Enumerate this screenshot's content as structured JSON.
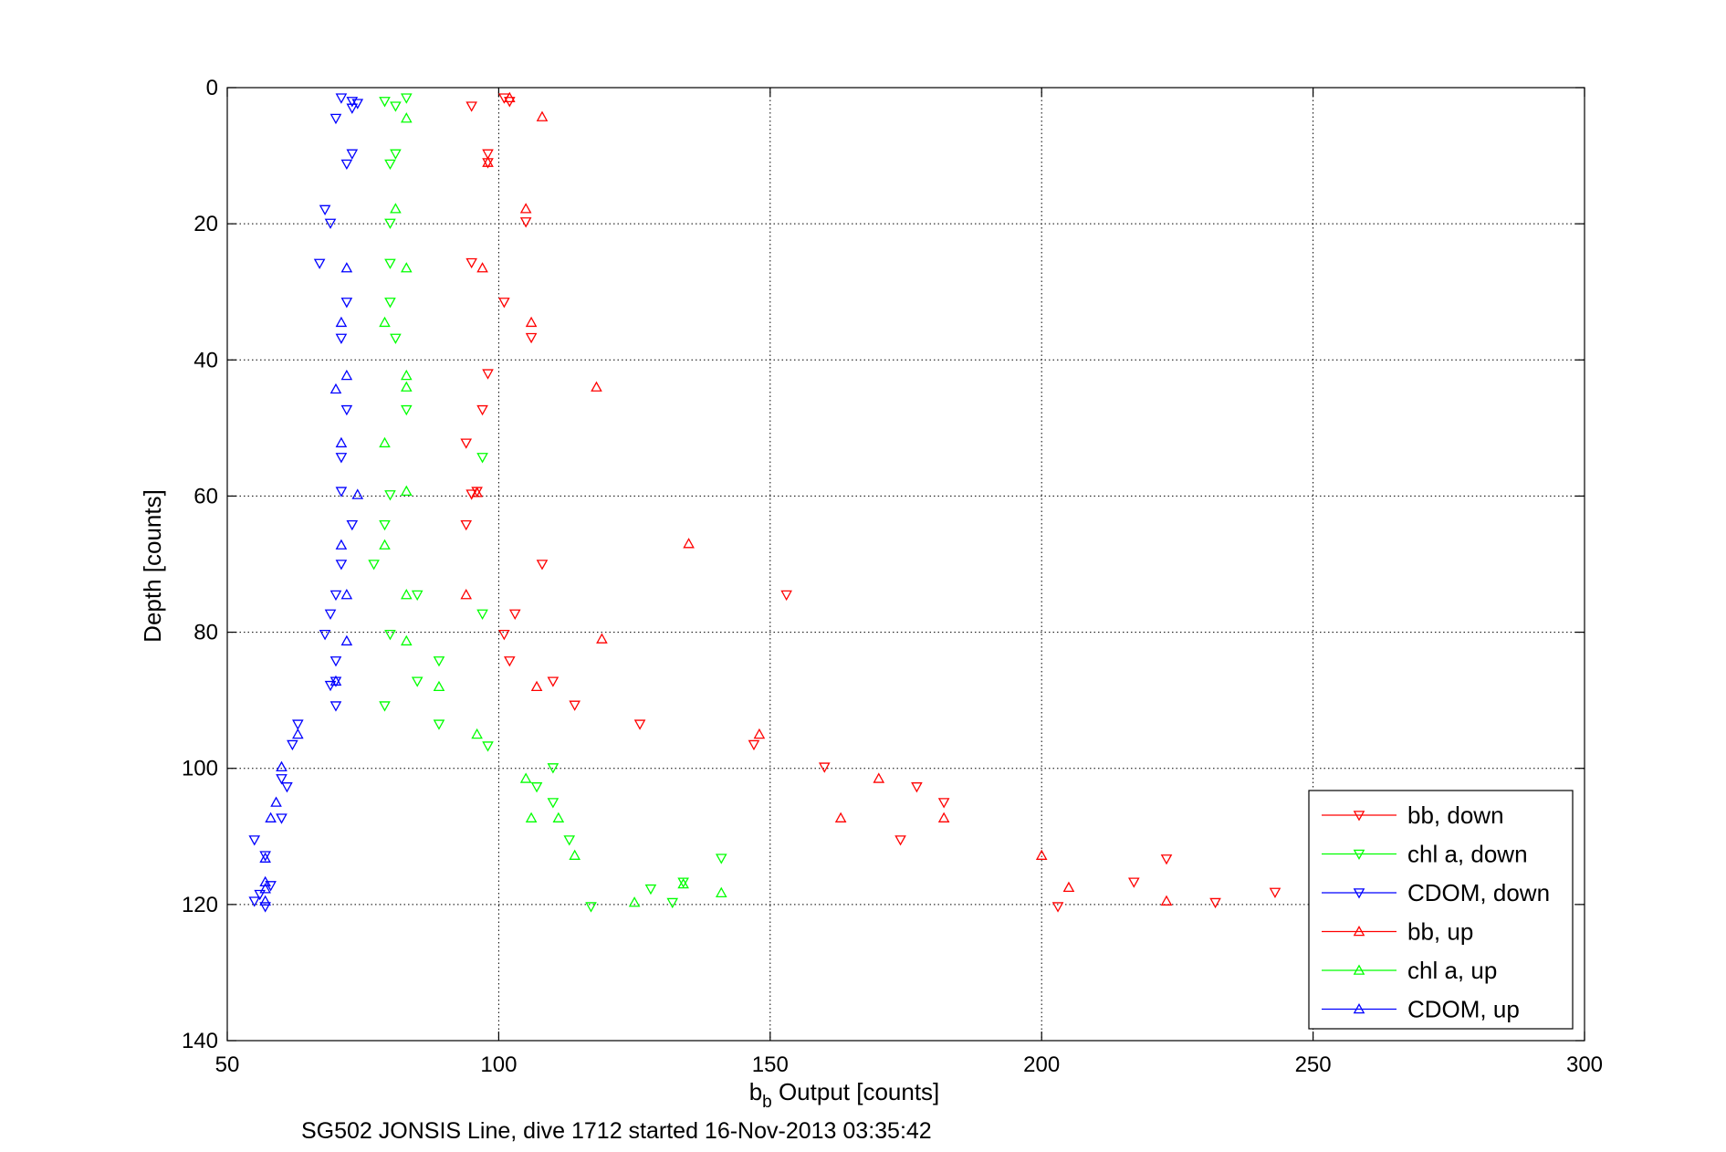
{
  "chart_data": {
    "type": "scatter",
    "title": "",
    "xlabel_main": "b",
    "xlabel_sub": "b",
    "xlabel_rest": " Output [counts]",
    "ylabel": "Depth [counts]",
    "caption": "SG502 JONSIS Line, dive 1712 started 16-Nov-2013 03:35:42",
    "xlim": [
      50,
      300
    ],
    "ylim": [
      0,
      140
    ],
    "y_reversed": true,
    "xticks": [
      50,
      100,
      150,
      200,
      250,
      300
    ],
    "yticks": [
      0,
      20,
      40,
      60,
      80,
      100,
      120,
      140
    ],
    "grid": true,
    "legend_position": "bottom-right",
    "series": [
      {
        "name": "bb, down",
        "color": "#ff0000",
        "marker": "triangle-down",
        "points": [
          [
            101,
            1.5
          ],
          [
            102,
            2
          ],
          [
            95,
            2.7
          ],
          [
            98,
            9.7
          ],
          [
            98,
            11
          ],
          [
            105,
            19.7
          ],
          [
            95,
            25.7
          ],
          [
            101,
            31.5
          ],
          [
            106,
            36.7
          ],
          [
            98,
            42
          ],
          [
            97,
            47.3
          ],
          [
            94,
            52.2
          ],
          [
            96,
            59.3
          ],
          [
            95,
            59.7
          ],
          [
            94,
            64.2
          ],
          [
            108,
            70
          ],
          [
            153,
            74.5
          ],
          [
            103,
            77.3
          ],
          [
            101,
            80.3
          ],
          [
            102,
            84.2
          ],
          [
            110,
            87.2
          ],
          [
            114,
            90.7
          ],
          [
            126,
            93.5
          ],
          [
            147,
            96.5
          ],
          [
            160,
            99.8
          ],
          [
            177,
            102.7
          ],
          [
            182,
            105
          ],
          [
            174,
            110.5
          ],
          [
            223,
            113.3
          ],
          [
            217,
            116.7
          ],
          [
            243,
            118.2
          ],
          [
            232,
            119.7
          ],
          [
            203,
            120.3
          ]
        ]
      },
      {
        "name": "chl a, down",
        "color": "#00ff00",
        "marker": "triangle-down",
        "points": [
          [
            83,
            1.5
          ],
          [
            79,
            2
          ],
          [
            81,
            2.7
          ],
          [
            81,
            9.7
          ],
          [
            80,
            11.2
          ],
          [
            80,
            19.9
          ],
          [
            80,
            25.8
          ],
          [
            80,
            31.5
          ],
          [
            81,
            36.8
          ],
          [
            83,
            47.3
          ],
          [
            97,
            54.3
          ],
          [
            80,
            59.8
          ],
          [
            79,
            64.2
          ],
          [
            77,
            70
          ],
          [
            85,
            74.5
          ],
          [
            97,
            77.3
          ],
          [
            80,
            80.3
          ],
          [
            89,
            84.2
          ],
          [
            85,
            87.2
          ],
          [
            79,
            90.8
          ],
          [
            89,
            93.5
          ],
          [
            98,
            96.7
          ],
          [
            110,
            99.9
          ],
          [
            107,
            102.7
          ],
          [
            110,
            105
          ],
          [
            113,
            110.5
          ],
          [
            141,
            113.2
          ],
          [
            134,
            116.7
          ],
          [
            128,
            117.7
          ],
          [
            132,
            119.7
          ],
          [
            117,
            120.3
          ]
        ]
      },
      {
        "name": "CDOM, down",
        "color": "#0000ff",
        "marker": "triangle-down",
        "points": [
          [
            71,
            1.5
          ],
          [
            73,
            2
          ],
          [
            74,
            2.3
          ],
          [
            73,
            3
          ],
          [
            70,
            4.5
          ],
          [
            73,
            9.7
          ],
          [
            72,
            11.2
          ],
          [
            68,
            17.9
          ],
          [
            69,
            19.9
          ],
          [
            67,
            25.8
          ],
          [
            72,
            31.5
          ],
          [
            71,
            36.8
          ],
          [
            72,
            47.3
          ],
          [
            71,
            54.3
          ],
          [
            71,
            59.3
          ],
          [
            73,
            64.2
          ],
          [
            71,
            70
          ],
          [
            70,
            74.5
          ],
          [
            69,
            77.3
          ],
          [
            68,
            80.3
          ],
          [
            70,
            84.2
          ],
          [
            70,
            87.2
          ],
          [
            69,
            87.8
          ],
          [
            70,
            90.8
          ],
          [
            63,
            93.5
          ],
          [
            62,
            96.5
          ],
          [
            60,
            101.5
          ],
          [
            61,
            102.7
          ],
          [
            60,
            107.3
          ],
          [
            55,
            110.5
          ],
          [
            57,
            112.8
          ],
          [
            58,
            117.2
          ],
          [
            56,
            118.5
          ],
          [
            55,
            119.5
          ],
          [
            57,
            120.3
          ]
        ]
      },
      {
        "name": "bb, up",
        "color": "#ff0000",
        "marker": "triangle-up",
        "points": [
          [
            102,
            1.5
          ],
          [
            108,
            4.3
          ],
          [
            98,
            11
          ],
          [
            105,
            17.8
          ],
          [
            97,
            26.5
          ],
          [
            106,
            34.5
          ],
          [
            118,
            44
          ],
          [
            96,
            59.5
          ],
          [
            135,
            67
          ],
          [
            94,
            74.5
          ],
          [
            119,
            81
          ],
          [
            107,
            88
          ],
          [
            148,
            95
          ],
          [
            170,
            101.5
          ],
          [
            163,
            107.3
          ],
          [
            182,
            107.3
          ],
          [
            200,
            112.8
          ],
          [
            205,
            117.5
          ],
          [
            223,
            119.5
          ]
        ]
      },
      {
        "name": "chl a, up",
        "color": "#00ff00",
        "marker": "triangle-up",
        "points": [
          [
            83,
            4.5
          ],
          [
            81,
            17.8
          ],
          [
            83,
            26.5
          ],
          [
            79,
            34.5
          ],
          [
            83,
            42.3
          ],
          [
            83,
            44
          ],
          [
            79,
            52.2
          ],
          [
            83,
            59.3
          ],
          [
            79,
            67.2
          ],
          [
            83,
            74.5
          ],
          [
            83,
            81.3
          ],
          [
            89,
            88
          ],
          [
            96,
            95
          ],
          [
            105,
            101.5
          ],
          [
            106,
            107.3
          ],
          [
            111,
            107.3
          ],
          [
            114,
            112.8
          ],
          [
            134,
            117
          ],
          [
            141,
            118.3
          ],
          [
            125,
            119.7
          ]
        ]
      },
      {
        "name": "CDOM, up",
        "color": "#0000ff",
        "marker": "triangle-up",
        "points": [
          [
            72,
            26.5
          ],
          [
            71,
            34.5
          ],
          [
            72,
            42.3
          ],
          [
            70,
            44.3
          ],
          [
            71,
            52.2
          ],
          [
            74,
            59.8
          ],
          [
            71,
            67.2
          ],
          [
            72,
            74.5
          ],
          [
            72,
            81.3
          ],
          [
            70,
            87.2
          ],
          [
            63,
            95
          ],
          [
            60,
            99.8
          ],
          [
            59,
            105
          ],
          [
            58,
            107.3
          ],
          [
            57,
            113.2
          ],
          [
            57,
            116.7
          ],
          [
            57,
            117.7
          ],
          [
            57,
            119.5
          ]
        ]
      }
    ]
  }
}
